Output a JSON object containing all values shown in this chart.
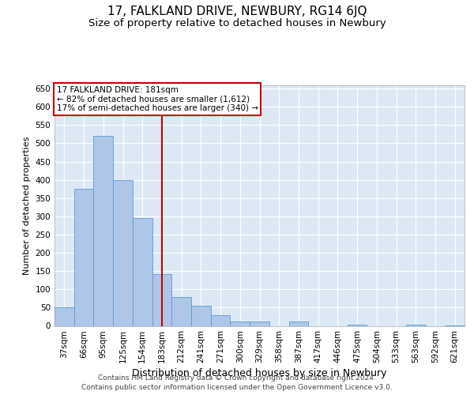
{
  "title": "17, FALKLAND DRIVE, NEWBURY, RG14 6JQ",
  "subtitle": "Size of property relative to detached houses in Newbury",
  "xlabel": "Distribution of detached houses by size in Newbury",
  "ylabel": "Number of detached properties",
  "categories": [
    "37sqm",
    "66sqm",
    "95sqm",
    "125sqm",
    "154sqm",
    "183sqm",
    "212sqm",
    "241sqm",
    "271sqm",
    "300sqm",
    "329sqm",
    "358sqm",
    "387sqm",
    "417sqm",
    "446sqm",
    "475sqm",
    "504sqm",
    "533sqm",
    "563sqm",
    "592sqm",
    "621sqm"
  ],
  "values": [
    50,
    375,
    520,
    400,
    295,
    142,
    80,
    55,
    30,
    12,
    12,
    0,
    12,
    0,
    0,
    3,
    0,
    0,
    3,
    0,
    2
  ],
  "bar_color": "#aec6e8",
  "bar_edge_color": "#5b9bd5",
  "annotation_line1": "17 FALKLAND DRIVE: 181sqm",
  "annotation_line2": "← 82% of detached houses are smaller (1,612)",
  "annotation_line3": "17% of semi-detached houses are larger (340) →",
  "annotation_box_color": "#ffffff",
  "annotation_box_edge": "#cc0000",
  "vline_color": "#cc0000",
  "vline_x_index": 5,
  "ylim": [
    0,
    660
  ],
  "yticks": [
    0,
    50,
    100,
    150,
    200,
    250,
    300,
    350,
    400,
    450,
    500,
    550,
    600,
    650
  ],
  "background_color": "#ffffff",
  "plot_bg_color": "#dce9f5",
  "grid_color": "#ffffff",
  "footer1": "Contains HM Land Registry data © Crown copyright and database right 2024.",
  "footer2": "Contains public sector information licensed under the Open Government Licence v3.0.",
  "title_fontsize": 11,
  "subtitle_fontsize": 9.5,
  "xlabel_fontsize": 9,
  "ylabel_fontsize": 8,
  "tick_fontsize": 7.5,
  "footer_fontsize": 6.5,
  "annot_fontsize": 7.5
}
